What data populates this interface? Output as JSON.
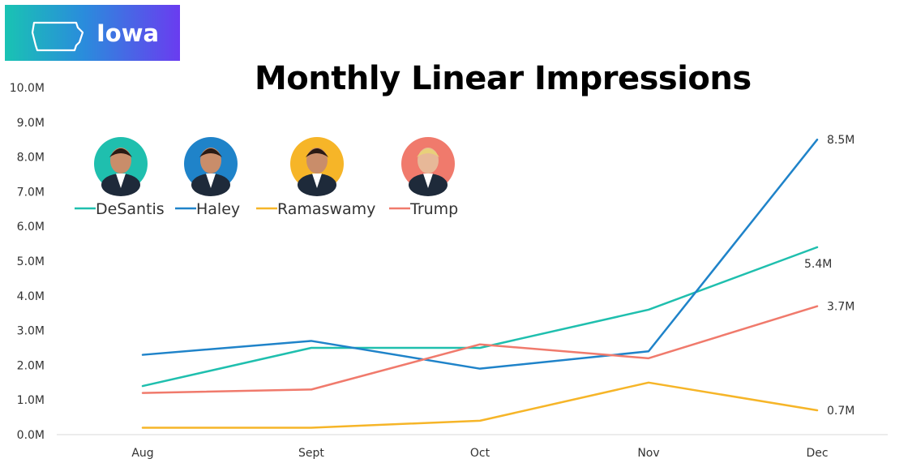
{
  "badge": {
    "label": "Iowa",
    "icon": "iowa-state-outline-icon"
  },
  "chart_data": {
    "type": "line",
    "title": "Monthly Linear Impressions",
    "xlabel": "",
    "ylabel": "",
    "categories": [
      "Aug",
      "Sept",
      "Oct",
      "Nov",
      "Dec"
    ],
    "ylim": [
      0,
      10
    ],
    "yticks": [
      "0.0M",
      "1.0M",
      "2.0M",
      "3.0M",
      "4.0M",
      "5.0M",
      "6.0M",
      "7.0M",
      "8.0M",
      "9.0M",
      "10.0M"
    ],
    "legend_position": "top-left",
    "grid": false,
    "series": [
      {
        "name": "DeSantis",
        "color": "#1fbfae",
        "avatar_color": "#1fbfae",
        "values": [
          1.4,
          2.5,
          2.5,
          3.6,
          5.4
        ],
        "end_label": "5.4M"
      },
      {
        "name": "Haley",
        "color": "#1f83c9",
        "avatar_color": "#1f83c9",
        "values": [
          2.3,
          2.7,
          1.9,
          2.4,
          8.5
        ],
        "end_label": "8.5M"
      },
      {
        "name": "Ramaswamy",
        "color": "#f6b528",
        "avatar_color": "#f6b528",
        "values": [
          0.2,
          0.2,
          0.4,
          1.5,
          0.7
        ],
        "end_label": "0.7M"
      },
      {
        "name": "Trump",
        "color": "#f07a6c",
        "avatar_color": "#f07a6c",
        "values": [
          1.2,
          1.3,
          2.6,
          2.2,
          3.7
        ],
        "end_label": "3.7M"
      }
    ]
  }
}
